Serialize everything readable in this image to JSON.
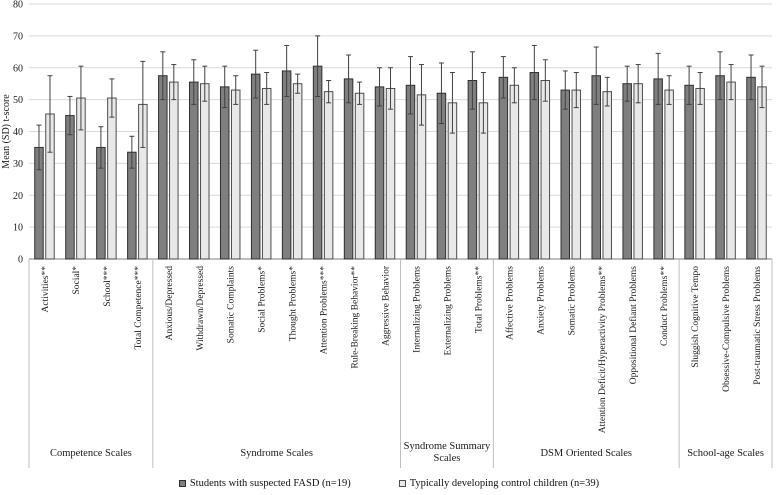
{
  "chart_data": {
    "type": "bar",
    "title": "",
    "ylabel": "Mean (SD) t-score",
    "ylim": [
      0,
      80
    ],
    "ytick_step": 10,
    "yticks": [
      0,
      10,
      20,
      30,
      40,
      50,
      60,
      70,
      80
    ],
    "grid": true,
    "legend_position": "bottom",
    "error_bars": true,
    "categories": [
      "Activities**",
      "Social*",
      "School***",
      "Total Competence***",
      "Anxious/Depressed",
      "Withdrawn/Depressed",
      "Somatic Complaints",
      "Social Problems*",
      "Thought Problems*",
      "Attention Problems***",
      "Rule-Breaking Behavior**",
      "Aggressive Behavior",
      "Internalizing Problems",
      "Externalizing Problems",
      "Total Problems**",
      "Affective Problems",
      "Anxiety Problems",
      "Somatic Problems",
      "Attention Deficit/Hyperactivity Problems**",
      "Oppositional Defiant Problems",
      "Conduct Problems**",
      "Sluggish Cognitive Tempo",
      "Obsessive-Compulsive Problems",
      "Post-traumatic Stress Problems"
    ],
    "groups": [
      {
        "label": "Competence Scales",
        "size": 4
      },
      {
        "label": "Syndrome Scales",
        "size": 8
      },
      {
        "label": "Syndrome Summary Scales",
        "size": 3
      },
      {
        "label": "DSM Oriented Scales",
        "size": 6
      },
      {
        "label": "School-age Scales",
        "size": 3
      }
    ],
    "series": [
      {
        "name": "Students with suspected FASD (n=19)",
        "fill": "#7f7f7f",
        "stroke": "#2f2f2f",
        "values": [
          35,
          45,
          35,
          33.5,
          57.5,
          55.5,
          54,
          58,
          59,
          60.5,
          56.5,
          54,
          54.5,
          52,
          56,
          57,
          58.5,
          53,
          57.5,
          55,
          56.5,
          54.5,
          57.5,
          57
        ],
        "errors": [
          7,
          6,
          6.5,
          5,
          7.5,
          7,
          6.5,
          7.5,
          8,
          9.5,
          7.5,
          6,
          9,
          9.5,
          9,
          6.5,
          8.5,
          6,
          9,
          5.5,
          8,
          6,
          7.5,
          7
        ]
      },
      {
        "name": "Typically developing control children (n=39)",
        "fill": "#e8e8e8",
        "stroke": "#4d4d4d",
        "values": [
          45.5,
          50.5,
          50.5,
          48.5,
          55.5,
          55,
          53,
          53.5,
          55,
          52.5,
          52,
          53.5,
          51.5,
          49,
          49,
          54.5,
          56,
          53,
          52.5,
          55,
          53,
          53.5,
          55.5,
          54
        ],
        "errors": [
          12,
          10,
          6,
          13.5,
          5.5,
          5.5,
          4.5,
          5,
          3,
          3.5,
          3.5,
          6.5,
          9.5,
          9.5,
          9.5,
          5.5,
          6.5,
          5.5,
          4.5,
          6,
          4.5,
          5,
          5.5,
          6.5
        ]
      }
    ],
    "colors": {
      "gridline": "#d9d9d9",
      "axis_line": "#808080",
      "divider": "#bfbfbf",
      "error_bar": "#404040",
      "text": "#1a1a1a"
    }
  }
}
